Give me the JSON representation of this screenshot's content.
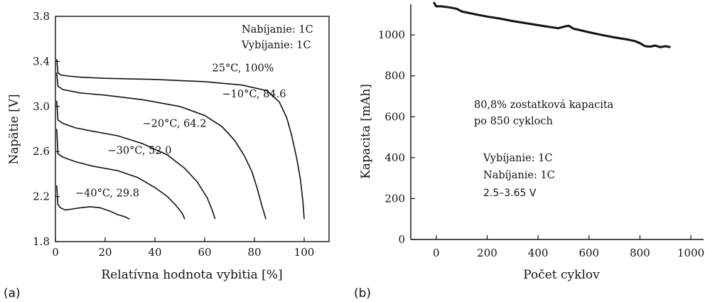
{
  "panels": {
    "a": "(a)",
    "b": "(b)"
  },
  "chart_data": [
    {
      "type": "line",
      "xlabel": "Relatívna hodnota vybitia [%]",
      "ylabel": "Napätie [V]",
      "xlim": [
        0,
        110
      ],
      "ylim": [
        1.8,
        3.8
      ],
      "xticks": [
        0,
        20,
        40,
        60,
        80,
        100
      ],
      "yticks": [
        1.8,
        2.2,
        2.6,
        3.0,
        3.4,
        3.8
      ],
      "annotations": [
        "Nabíjanie: 1C",
        "Vybíjanie: 1C"
      ],
      "series": [
        {
          "name": "25°C, 100%",
          "x": [
            0.5,
            1,
            2,
            5,
            10,
            20,
            40,
            60,
            75,
            85,
            90,
            93,
            95,
            97,
            98.5,
            99.5,
            100
          ],
          "y": [
            3.42,
            3.3,
            3.28,
            3.27,
            3.26,
            3.25,
            3.24,
            3.22,
            3.19,
            3.14,
            3.04,
            2.9,
            2.74,
            2.54,
            2.35,
            2.15,
            2.0
          ]
        },
        {
          "name": "−10°C, 84.6",
          "x": [
            0.5,
            1,
            3,
            10,
            20,
            35,
            50,
            60,
            67,
            72,
            76,
            79,
            81,
            83,
            84.6
          ],
          "y": [
            3.3,
            3.18,
            3.15,
            3.12,
            3.1,
            3.06,
            3.0,
            2.92,
            2.82,
            2.7,
            2.56,
            2.42,
            2.28,
            2.12,
            2.0
          ]
        },
        {
          "name": "−20°C, 64.2",
          "x": [
            0.5,
            1,
            3,
            8,
            15,
            25,
            35,
            45,
            52,
            57,
            61,
            63,
            64.2
          ],
          "y": [
            3.05,
            2.88,
            2.85,
            2.81,
            2.78,
            2.74,
            2.67,
            2.57,
            2.45,
            2.33,
            2.19,
            2.08,
            2.0
          ]
        },
        {
          "name": "−30°C, 52.0",
          "x": [
            0.5,
            1,
            3,
            8,
            15,
            25,
            33,
            40,
            45,
            48.5,
            51,
            52
          ],
          "y": [
            2.8,
            2.58,
            2.55,
            2.51,
            2.47,
            2.43,
            2.37,
            2.28,
            2.2,
            2.12,
            2.05,
            2.0
          ]
        },
        {
          "name": "−40°C, 29.8",
          "x": [
            0.5,
            1,
            2,
            4,
            7,
            10,
            14,
            18,
            22,
            25,
            28,
            29.8
          ],
          "y": [
            2.3,
            2.13,
            2.1,
            2.08,
            2.09,
            2.1,
            2.11,
            2.1,
            2.07,
            2.04,
            2.02,
            2.0
          ]
        }
      ]
    },
    {
      "type": "line",
      "xlabel": "Počet cyklov",
      "ylabel": "Kapacita [mAh]",
      "xlim": [
        -100,
        1050
      ],
      "ylim": [
        0,
        1150
      ],
      "xticks": [
        0,
        200,
        400,
        600,
        800,
        1000
      ],
      "yticks": [
        0,
        200,
        400,
        600,
        800,
        1000
      ],
      "annotations": [
        "80,8% zostatková kapacita",
        "po 850 cykloch",
        "Vybíjanie: 1C",
        "Nabíjanie: 1C",
        "2.5–3.65 V"
      ],
      "series": [
        {
          "x": [
            -10,
            0,
            20,
            50,
            80,
            100,
            130,
            170,
            200,
            250,
            300,
            350,
            400,
            440,
            480,
            500,
            520,
            540,
            560,
            600,
            650,
            700,
            750,
            780,
            800,
            820,
            840,
            860,
            880,
            900,
            920
          ],
          "y": [
            1160,
            1140,
            1140,
            1135,
            1128,
            1115,
            1107,
            1097,
            1090,
            1080,
            1068,
            1058,
            1048,
            1040,
            1033,
            1040,
            1045,
            1030,
            1025,
            1013,
            1000,
            988,
            978,
            970,
            960,
            945,
            943,
            948,
            940,
            945,
            940
          ]
        }
      ]
    }
  ]
}
